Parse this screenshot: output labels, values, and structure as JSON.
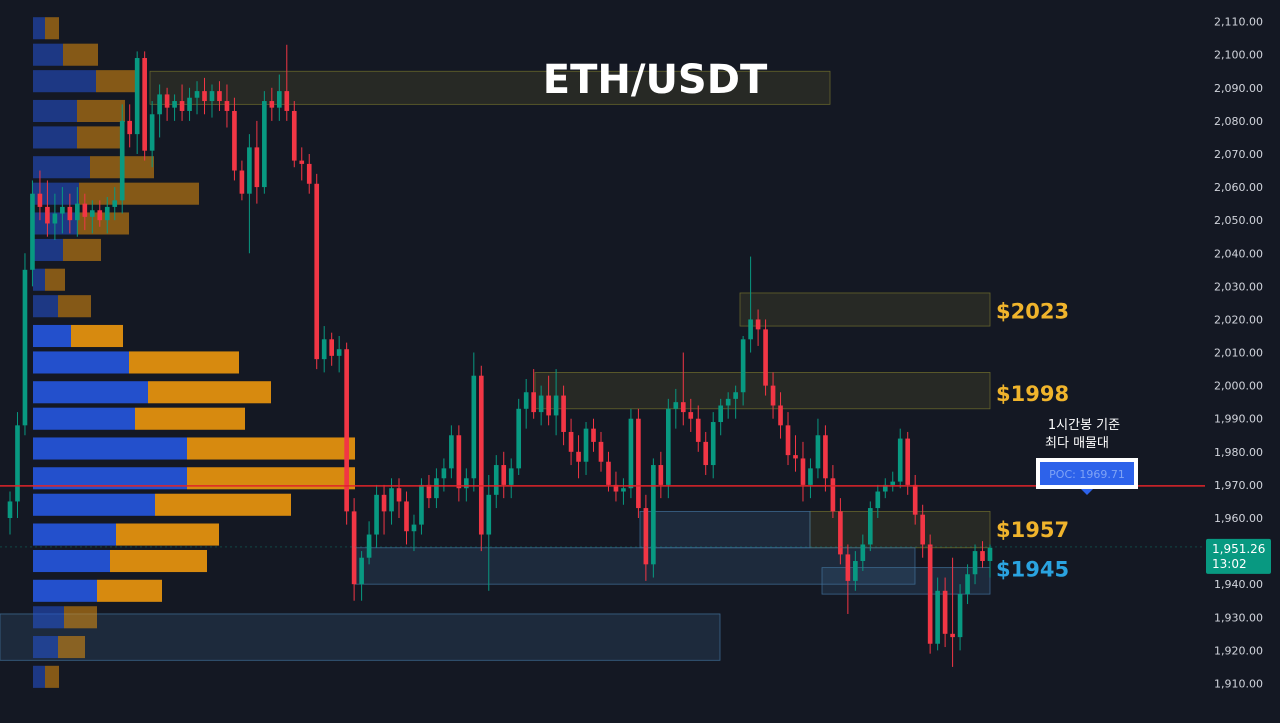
{
  "chart_data": {
    "type": "candlestick",
    "title": "ETH/USDT",
    "y_axis": {
      "min": 1905,
      "max": 2112,
      "ticks": [
        "2,110.00",
        "2,100.00",
        "2,090.00",
        "2,080.00",
        "2,070.00",
        "2,060.00",
        "2,050.00",
        "2,040.00",
        "2,030.00",
        "2,020.00",
        "2,010.00",
        "2,000.00",
        "1,990.00",
        "1,980.00",
        "1,970.00",
        "1,960.00",
        "1,950.00",
        "1,940.00",
        "1,930.00",
        "1,920.00",
        "1,910.00"
      ]
    },
    "current_price": {
      "value": 1951.26,
      "label": "1,951.26",
      "countdown": "13:02",
      "color": "#089981"
    },
    "poc": {
      "value": 1969.71,
      "label": "POC: 1969.71",
      "color": "#e0242a"
    },
    "annotation": {
      "line1": "1시간봉 기준",
      "line2": "최다 매물대"
    },
    "levels": [
      {
        "label": "$2023",
        "value": 2023,
        "color": "#f0b42c"
      },
      {
        "label": "$1998",
        "value": 1998,
        "color": "#f0b42c"
      },
      {
        "label": "$1957",
        "value": 1957,
        "color": "#f0b42c"
      },
      {
        "label": "$1945",
        "value": 1945,
        "color": "#2aa3e0"
      }
    ],
    "zones": [
      {
        "kind": "supply",
        "y_top": 2095,
        "y_bottom": 2085
      },
      {
        "kind": "supply",
        "y_top": 2028,
        "y_bottom": 2018
      },
      {
        "kind": "supply",
        "y_top": 2004,
        "y_bottom": 1993
      },
      {
        "kind": "supply",
        "y_top": 1962,
        "y_bottom": 1951
      },
      {
        "kind": "demand",
        "y_top": 1962,
        "y_bottom": 1951
      },
      {
        "kind": "demand",
        "y_top": 1951,
        "y_bottom": 1940
      },
      {
        "kind": "demand",
        "y_top": 1945,
        "y_bottom": 1937
      },
      {
        "kind": "demand",
        "y_top": 1931,
        "y_bottom": 1917
      }
    ],
    "volume_profile": [
      {
        "price": 2108,
        "buy": 12,
        "sell": 14
      },
      {
        "price": 2100,
        "buy": 30,
        "sell": 35
      },
      {
        "price": 2092,
        "buy": 63,
        "sell": 40
      },
      {
        "price": 2083,
        "buy": 44,
        "sell": 48
      },
      {
        "price": 2075,
        "buy": 44,
        "sell": 45
      },
      {
        "price": 2066,
        "buy": 57,
        "sell": 64
      },
      {
        "price": 2058,
        "buy": 46,
        "sell": 120
      },
      {
        "price": 2049,
        "buy": 44,
        "sell": 52
      },
      {
        "price": 2041,
        "buy": 30,
        "sell": 38
      },
      {
        "price": 2032,
        "buy": 12,
        "sell": 20
      },
      {
        "price": 2024,
        "buy": 25,
        "sell": 33
      },
      {
        "price": 2015,
        "buy": 38,
        "sell": 52
      },
      {
        "price": 2007,
        "buy": 96,
        "sell": 110
      },
      {
        "price": 1998,
        "buy": 115,
        "sell": 123
      },
      {
        "price": 1990,
        "buy": 102,
        "sell": 110
      },
      {
        "price": 1981,
        "buy": 154,
        "sell": 168
      },
      {
        "price": 1972,
        "buy": 154,
        "sell": 168
      },
      {
        "price": 1964,
        "buy": 122,
        "sell": 136
      },
      {
        "price": 1955,
        "buy": 83,
        "sell": 103
      },
      {
        "price": 1947,
        "buy": 77,
        "sell": 97
      },
      {
        "price": 1938,
        "buy": 64,
        "sell": 65
      },
      {
        "price": 1930,
        "buy": 31,
        "sell": 33
      },
      {
        "price": 1921,
        "buy": 25,
        "sell": 27
      },
      {
        "price": 1912,
        "buy": 12,
        "sell": 14
      }
    ],
    "candles": [
      {
        "o": 1960,
        "h": 1968,
        "l": 1955,
        "c": 1965
      },
      {
        "o": 1965,
        "h": 1992,
        "l": 1960,
        "c": 1988
      },
      {
        "o": 1988,
        "h": 2040,
        "l": 1985,
        "c": 2035
      },
      {
        "o": 2035,
        "h": 2062,
        "l": 2030,
        "c": 2058
      },
      {
        "o": 2058,
        "h": 2065,
        "l": 2050,
        "c": 2054
      },
      {
        "o": 2054,
        "h": 2062,
        "l": 2045,
        "c": 2049
      },
      {
        "o": 2049,
        "h": 2058,
        "l": 2044,
        "c": 2052
      },
      {
        "o": 2052,
        "h": 2060,
        "l": 2046,
        "c": 2054
      },
      {
        "o": 2054,
        "h": 2058,
        "l": 2046,
        "c": 2050
      },
      {
        "o": 2050,
        "h": 2060,
        "l": 2045,
        "c": 2055
      },
      {
        "o": 2055,
        "h": 2058,
        "l": 2047,
        "c": 2051
      },
      {
        "o": 2051,
        "h": 2056,
        "l": 2046,
        "c": 2053
      },
      {
        "o": 2053,
        "h": 2056,
        "l": 2048,
        "c": 2050
      },
      {
        "o": 2050,
        "h": 2057,
        "l": 2046,
        "c": 2054
      },
      {
        "o": 2054,
        "h": 2060,
        "l": 2050,
        "c": 2056
      },
      {
        "o": 2056,
        "h": 2085,
        "l": 2052,
        "c": 2080
      },
      {
        "o": 2080,
        "h": 2085,
        "l": 2072,
        "c": 2076
      },
      {
        "o": 2076,
        "h": 2101,
        "l": 2070,
        "c": 2099
      },
      {
        "o": 2099,
        "h": 2101,
        "l": 2068,
        "c": 2071
      },
      {
        "o": 2071,
        "h": 2086,
        "l": 2066,
        "c": 2082
      },
      {
        "o": 2082,
        "h": 2091,
        "l": 2075,
        "c": 2088
      },
      {
        "o": 2088,
        "h": 2090,
        "l": 2080,
        "c": 2084
      },
      {
        "o": 2084,
        "h": 2088,
        "l": 2080,
        "c": 2086
      },
      {
        "o": 2086,
        "h": 2091,
        "l": 2080,
        "c": 2083
      },
      {
        "o": 2083,
        "h": 2090,
        "l": 2080,
        "c": 2087
      },
      {
        "o": 2087,
        "h": 2092,
        "l": 2082,
        "c": 2089
      },
      {
        "o": 2089,
        "h": 2093,
        "l": 2082,
        "c": 2086
      },
      {
        "o": 2086,
        "h": 2091,
        "l": 2081,
        "c": 2089
      },
      {
        "o": 2089,
        "h": 2092,
        "l": 2083,
        "c": 2086
      },
      {
        "o": 2086,
        "h": 2091,
        "l": 2078,
        "c": 2083
      },
      {
        "o": 2083,
        "h": 2087,
        "l": 2062,
        "c": 2065
      },
      {
        "o": 2065,
        "h": 2068,
        "l": 2056,
        "c": 2058
      },
      {
        "o": 2058,
        "h": 2076,
        "l": 2040,
        "c": 2072
      },
      {
        "o": 2072,
        "h": 2080,
        "l": 2055,
        "c": 2060
      },
      {
        "o": 2060,
        "h": 2089,
        "l": 2058,
        "c": 2086
      },
      {
        "o": 2086,
        "h": 2090,
        "l": 2080,
        "c": 2084
      },
      {
        "o": 2084,
        "h": 2094,
        "l": 2080,
        "c": 2089
      },
      {
        "o": 2089,
        "h": 2103,
        "l": 2080,
        "c": 2083
      },
      {
        "o": 2083,
        "h": 2086,
        "l": 2066,
        "c": 2068
      },
      {
        "o": 2068,
        "h": 2072,
        "l": 2062,
        "c": 2067
      },
      {
        "o": 2067,
        "h": 2070,
        "l": 2058,
        "c": 2061
      },
      {
        "o": 2061,
        "h": 2064,
        "l": 2005,
        "c": 2008
      },
      {
        "o": 2008,
        "h": 2018,
        "l": 2004,
        "c": 2014
      },
      {
        "o": 2014,
        "h": 2016,
        "l": 2006,
        "c": 2009
      },
      {
        "o": 2009,
        "h": 2015,
        "l": 2004,
        "c": 2011
      },
      {
        "o": 2011,
        "h": 2013,
        "l": 1958,
        "c": 1962
      },
      {
        "o": 1962,
        "h": 1966,
        "l": 1935,
        "c": 1940
      },
      {
        "o": 1940,
        "h": 1950,
        "l": 1935,
        "c": 1948
      },
      {
        "o": 1948,
        "h": 1959,
        "l": 1946,
        "c": 1955
      },
      {
        "o": 1955,
        "h": 1970,
        "l": 1951,
        "c": 1967
      },
      {
        "o": 1967,
        "h": 1970,
        "l": 1955,
        "c": 1962
      },
      {
        "o": 1962,
        "h": 1972,
        "l": 1958,
        "c": 1969
      },
      {
        "o": 1969,
        "h": 1972,
        "l": 1960,
        "c": 1965
      },
      {
        "o": 1965,
        "h": 1968,
        "l": 1952,
        "c": 1956
      },
      {
        "o": 1956,
        "h": 1961,
        "l": 1950,
        "c": 1958
      },
      {
        "o": 1958,
        "h": 1972,
        "l": 1955,
        "c": 1970
      },
      {
        "o": 1970,
        "h": 1973,
        "l": 1963,
        "c": 1966
      },
      {
        "o": 1966,
        "h": 1975,
        "l": 1963,
        "c": 1972
      },
      {
        "o": 1972,
        "h": 1978,
        "l": 1968,
        "c": 1975
      },
      {
        "o": 1975,
        "h": 1988,
        "l": 1972,
        "c": 1985
      },
      {
        "o": 1985,
        "h": 1988,
        "l": 1965,
        "c": 1969
      },
      {
        "o": 1969,
        "h": 1975,
        "l": 1965,
        "c": 1972
      },
      {
        "o": 1972,
        "h": 2010,
        "l": 1968,
        "c": 2003
      },
      {
        "o": 2003,
        "h": 2006,
        "l": 1950,
        "c": 1955
      },
      {
        "o": 1955,
        "h": 1973,
        "l": 1938,
        "c": 1967
      },
      {
        "o": 1967,
        "h": 1979,
        "l": 1963,
        "c": 1976
      },
      {
        "o": 1976,
        "h": 1980,
        "l": 1966,
        "c": 1970
      },
      {
        "o": 1970,
        "h": 1978,
        "l": 1966,
        "c": 1975
      },
      {
        "o": 1975,
        "h": 1996,
        "l": 1973,
        "c": 1993
      },
      {
        "o": 1993,
        "h": 2002,
        "l": 1987,
        "c": 1998
      },
      {
        "o": 1998,
        "h": 2005,
        "l": 1990,
        "c": 1992
      },
      {
        "o": 1992,
        "h": 2000,
        "l": 1988,
        "c": 1997
      },
      {
        "o": 1997,
        "h": 2003,
        "l": 1988,
        "c": 1991
      },
      {
        "o": 1991,
        "h": 2005,
        "l": 1985,
        "c": 1997
      },
      {
        "o": 1997,
        "h": 2000,
        "l": 1982,
        "c": 1986
      },
      {
        "o": 1986,
        "h": 1990,
        "l": 1976,
        "c": 1980
      },
      {
        "o": 1980,
        "h": 1985,
        "l": 1972,
        "c": 1977
      },
      {
        "o": 1977,
        "h": 1989,
        "l": 1973,
        "c": 1987
      },
      {
        "o": 1987,
        "h": 1990,
        "l": 1980,
        "c": 1983
      },
      {
        "o": 1983,
        "h": 1986,
        "l": 1974,
        "c": 1977
      },
      {
        "o": 1977,
        "h": 1980,
        "l": 1968,
        "c": 1970
      },
      {
        "o": 1970,
        "h": 1974,
        "l": 1965,
        "c": 1968
      },
      {
        "o": 1968,
        "h": 1972,
        "l": 1964,
        "c": 1969
      },
      {
        "o": 1969,
        "h": 1993,
        "l": 1966,
        "c": 1990
      },
      {
        "o": 1990,
        "h": 1993,
        "l": 1960,
        "c": 1963
      },
      {
        "o": 1963,
        "h": 1967,
        "l": 1941,
        "c": 1946
      },
      {
        "o": 1946,
        "h": 1978,
        "l": 1942,
        "c": 1976
      },
      {
        "o": 1976,
        "h": 1980,
        "l": 1966,
        "c": 1970
      },
      {
        "o": 1970,
        "h": 1996,
        "l": 1966,
        "c": 1993
      },
      {
        "o": 1993,
        "h": 1999,
        "l": 1987,
        "c": 1995
      },
      {
        "o": 1995,
        "h": 2010,
        "l": 1988,
        "c": 1992
      },
      {
        "o": 1992,
        "h": 1996,
        "l": 1986,
        "c": 1990
      },
      {
        "o": 1990,
        "h": 1994,
        "l": 1980,
        "c": 1983
      },
      {
        "o": 1983,
        "h": 1986,
        "l": 1973,
        "c": 1976
      },
      {
        "o": 1976,
        "h": 1992,
        "l": 1972,
        "c": 1989
      },
      {
        "o": 1989,
        "h": 1996,
        "l": 1985,
        "c": 1994
      },
      {
        "o": 1994,
        "h": 1998,
        "l": 1990,
        "c": 1996
      },
      {
        "o": 1996,
        "h": 2000,
        "l": 1990,
        "c": 1998
      },
      {
        "o": 1998,
        "h": 2015,
        "l": 1994,
        "c": 2014
      },
      {
        "o": 2014,
        "h": 2039,
        "l": 2010,
        "c": 2020
      },
      {
        "o": 2020,
        "h": 2023,
        "l": 2012,
        "c": 2017
      },
      {
        "o": 2017,
        "h": 2020,
        "l": 1997,
        "c": 2000
      },
      {
        "o": 2000,
        "h": 2004,
        "l": 1990,
        "c": 1994
      },
      {
        "o": 1994,
        "h": 1998,
        "l": 1984,
        "c": 1988
      },
      {
        "o": 1988,
        "h": 1992,
        "l": 1976,
        "c": 1979
      },
      {
        "o": 1979,
        "h": 1985,
        "l": 1974,
        "c": 1978
      },
      {
        "o": 1978,
        "h": 1983,
        "l": 1965,
        "c": 1970
      },
      {
        "o": 1970,
        "h": 1978,
        "l": 1966,
        "c": 1975
      },
      {
        "o": 1975,
        "h": 1990,
        "l": 1972,
        "c": 1985
      },
      {
        "o": 1985,
        "h": 1988,
        "l": 1968,
        "c": 1972
      },
      {
        "o": 1972,
        "h": 1976,
        "l": 1960,
        "c": 1962
      },
      {
        "o": 1962,
        "h": 1966,
        "l": 1946,
        "c": 1949
      },
      {
        "o": 1949,
        "h": 1952,
        "l": 1931,
        "c": 1941
      },
      {
        "o": 1941,
        "h": 1950,
        "l": 1938,
        "c": 1947
      },
      {
        "o": 1947,
        "h": 1955,
        "l": 1944,
        "c": 1952
      },
      {
        "o": 1952,
        "h": 1965,
        "l": 1950,
        "c": 1963
      },
      {
        "o": 1963,
        "h": 1970,
        "l": 1960,
        "c": 1968
      },
      {
        "o": 1968,
        "h": 1972,
        "l": 1966,
        "c": 1970
      },
      {
        "o": 1970,
        "h": 1974,
        "l": 1968,
        "c": 1971
      },
      {
        "o": 1971,
        "h": 1987,
        "l": 1969,
        "c": 1984
      },
      {
        "o": 1984,
        "h": 1986,
        "l": 1967,
        "c": 1970
      },
      {
        "o": 1970,
        "h": 1973,
        "l": 1958,
        "c": 1961
      },
      {
        "o": 1961,
        "h": 1964,
        "l": 1948,
        "c": 1952
      },
      {
        "o": 1952,
        "h": 1955,
        "l": 1919,
        "c": 1922
      },
      {
        "o": 1922,
        "h": 1942,
        "l": 1920,
        "c": 1938
      },
      {
        "o": 1938,
        "h": 1942,
        "l": 1921,
        "c": 1925
      },
      {
        "o": 1925,
        "h": 1948,
        "l": 1915,
        "c": 1924
      },
      {
        "o": 1924,
        "h": 1940,
        "l": 1920,
        "c": 1937
      },
      {
        "o": 1937,
        "h": 1946,
        "l": 1934,
        "c": 1943
      },
      {
        "o": 1943,
        "h": 1952,
        "l": 1940,
        "c": 1950
      },
      {
        "o": 1950,
        "h": 1953,
        "l": 1945,
        "c": 1947
      },
      {
        "o": 1947,
        "h": 1952,
        "l": 1942,
        "c": 1951
      }
    ]
  },
  "colors": {
    "background": "#141823",
    "up": "#089981",
    "down": "#f23645",
    "vp_buy": "#2453d6",
    "vp_sell": "#e1900f",
    "supply_zone": "#6d6b2c",
    "demand_zone": "#3f6e96",
    "axis_text": "#d1d4dc"
  }
}
